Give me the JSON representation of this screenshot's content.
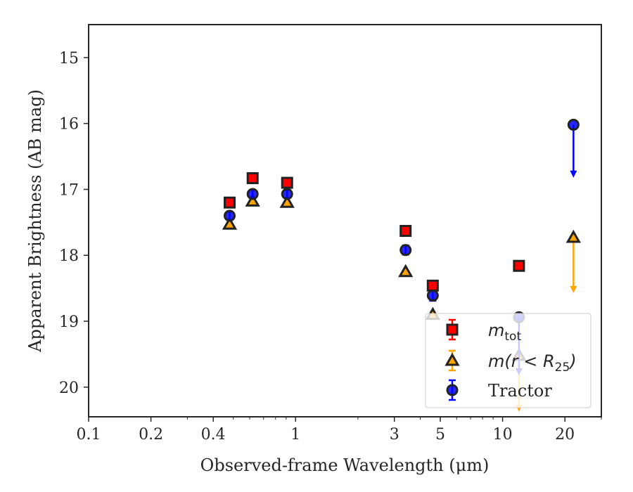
{
  "chart_data": {
    "type": "scatter",
    "xlabel": "Observed-frame Wavelength (μm)",
    "ylabel": "Apparent Brightness (AB mag)",
    "xscale": "log",
    "xlim": [
      0.1,
      30
    ],
    "ylim": [
      20.45,
      14.5
    ],
    "y_inverted": true,
    "grid": false,
    "legend_position": "lower-right",
    "x_ticks": [
      {
        "value": 0.1,
        "label": "0.1"
      },
      {
        "value": 0.2,
        "label": "0.2"
      },
      {
        "value": 0.4,
        "label": "0.4"
      },
      {
        "value": 1,
        "label": "1"
      },
      {
        "value": 3,
        "label": "3"
      },
      {
        "value": 5,
        "label": "5"
      },
      {
        "value": 10,
        "label": "10"
      },
      {
        "value": 20,
        "label": "20"
      }
    ],
    "y_ticks": [
      {
        "value": 15,
        "label": "15"
      },
      {
        "value": 16,
        "label": "16"
      },
      {
        "value": 17,
        "label": "17"
      },
      {
        "value": 18,
        "label": "18"
      },
      {
        "value": 19,
        "label": "19"
      },
      {
        "value": 20,
        "label": "20"
      }
    ],
    "series": [
      {
        "name": "m_tot",
        "legend_parts": {
          "main": "m",
          "sub": "tot"
        },
        "marker": "square",
        "color": "#ff0000",
        "edge_color": "#222222",
        "points": [
          {
            "x": 0.48,
            "y": 17.2,
            "err": 0.07
          },
          {
            "x": 0.62,
            "y": 16.83,
            "err": 0.06
          },
          {
            "x": 0.91,
            "y": 16.9,
            "err": 0.06
          },
          {
            "x": 3.4,
            "y": 17.63,
            "err": 0.05
          },
          {
            "x": 4.6,
            "y": 18.46,
            "err": 0.05
          },
          {
            "x": 12.0,
            "y": 18.16,
            "err": 0.06
          }
        ]
      },
      {
        "name": "m(r < R_25)",
        "legend_parts": {
          "main": "m(r < R",
          "sub": "25",
          "close": ")"
        },
        "marker": "triangle",
        "color": "#ffa500",
        "edge_color": "#222222",
        "points": [
          {
            "x": 0.48,
            "y": 17.53
          },
          {
            "x": 0.62,
            "y": 17.18
          },
          {
            "x": 0.91,
            "y": 17.2
          },
          {
            "x": 3.4,
            "y": 18.25
          },
          {
            "x": 4.6,
            "y": 18.9
          },
          {
            "x": 12.0,
            "y": 19.52,
            "upper_limit": true,
            "arrow_to": 20.35
          },
          {
            "x": 22.0,
            "y": 17.73,
            "upper_limit": true,
            "arrow_to": 18.55
          }
        ]
      },
      {
        "name": "Tractor",
        "marker": "circle",
        "color": "#0000ff",
        "edge_color": "#222222",
        "points": [
          {
            "x": 0.48,
            "y": 17.4,
            "err": 0.06
          },
          {
            "x": 0.62,
            "y": 17.07,
            "err": 0.06
          },
          {
            "x": 0.91,
            "y": 17.07,
            "err": 0.06
          },
          {
            "x": 3.4,
            "y": 17.92,
            "err": 0.07
          },
          {
            "x": 4.6,
            "y": 18.61,
            "err": 0.08
          },
          {
            "x": 12.0,
            "y": 18.94,
            "upper_limit": true,
            "arrow_to": 19.8
          },
          {
            "x": 22.0,
            "y": 16.02,
            "upper_limit": true,
            "arrow_to": 16.8
          }
        ]
      }
    ]
  }
}
